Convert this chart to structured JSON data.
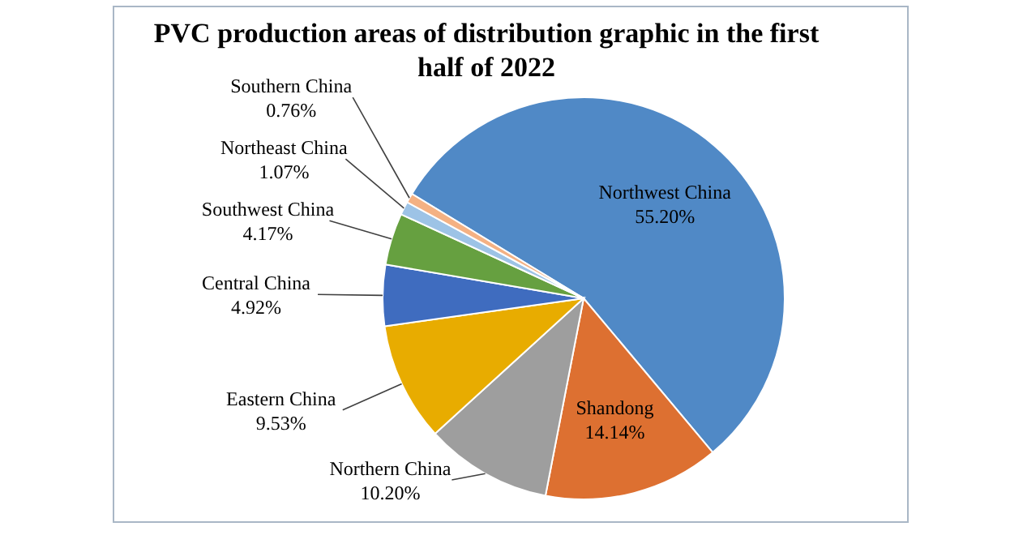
{
  "chart_data": {
    "type": "pie",
    "title": "PVC production areas of distribution graphic in the first half of 2022",
    "categories": [
      "Northwest China",
      "Shandong",
      "Northern China",
      "Eastern China",
      "Central China",
      "Southwest China",
      "Northeast China",
      "Southern China"
    ],
    "values": [
      55.2,
      14.14,
      10.2,
      9.53,
      4.92,
      4.17,
      1.07,
      0.76
    ],
    "colors": [
      "#5089c6",
      "#dd7031",
      "#9e9e9e",
      "#e8ac00",
      "#3f6cbf",
      "#66a040",
      "#9dc3e6",
      "#f4b183"
    ],
    "value_labels": [
      "55.20%",
      "14.14%",
      "10.20%",
      "9.53%",
      "4.92%",
      "4.17%",
      "1.07%",
      "0.76%"
    ]
  }
}
